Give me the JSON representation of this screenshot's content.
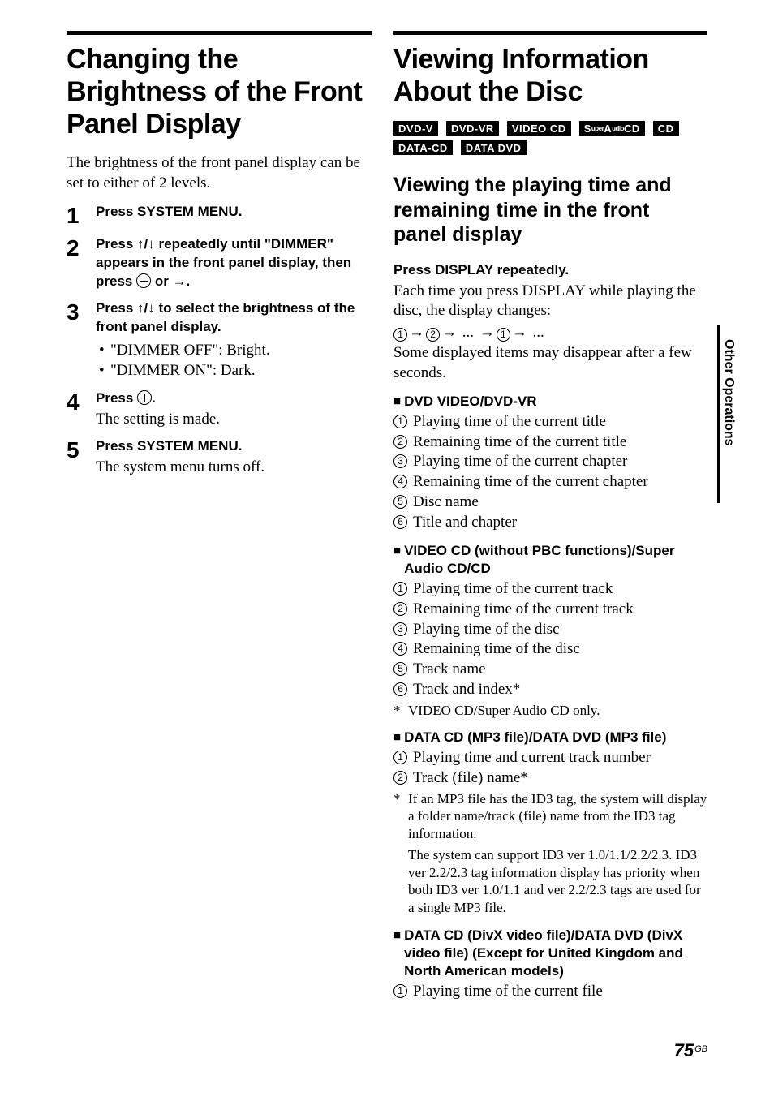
{
  "left": {
    "title": "Changing the Brightness of the Front Panel Display",
    "intro": "The brightness of the front panel display can be set to either of 2 levels.",
    "steps": [
      {
        "num": "1",
        "instr": "Press SYSTEM MENU."
      },
      {
        "num": "2",
        "instr_pre": "Press ",
        "arrows": "↑/↓",
        "instr_mid": " repeatedly until \"DIMMER\" appears in the front panel display, then press ",
        "instr_post_or": " or ",
        "instr_post_arrow": "→",
        "instr_end": "."
      },
      {
        "num": "3",
        "instr_pre": "Press ",
        "arrows": "↑/↓",
        "instr_mid": " to select the brightness of the front panel display.",
        "bullets": [
          "\"DIMMER OFF\": Bright.",
          "\"DIMMER ON\": Dark."
        ]
      },
      {
        "num": "4",
        "instr_pre": "Press ",
        "instr_end": ".",
        "note": "The setting is made."
      },
      {
        "num": "5",
        "instr": "Press SYSTEM MENU.",
        "note": "The system menu turns off."
      }
    ]
  },
  "right": {
    "title": "Viewing Information About the Disc",
    "badges": [
      "DVD-V",
      "DVD-VR",
      "VIDEO CD",
      "SuperAudioCD",
      "CD",
      "DATA-CD",
      "DATA DVD"
    ],
    "h2": "Viewing the playing time and remaining time in the front panel display",
    "press_display": "Press DISPLAY repeatedly.",
    "desc1": "Each time you press DISPLAY while playing the disc, the display changes:",
    "desc2": "Some displayed items may disappear after a few seconds.",
    "sections": [
      {
        "title": "DVD VIDEO/DVD-VR",
        "items": [
          "Playing time of the current title",
          "Remaining time of the current title",
          "Playing time of the current chapter",
          "Remaining time of the current chapter",
          "Disc name",
          "Title and chapter"
        ]
      },
      {
        "title": "VIDEO CD (without PBC functions)/Super Audio CD/CD",
        "items": [
          "Playing time of the current track",
          "Remaining time of the current track",
          "Playing time of the disc",
          "Remaining time of the disc",
          "Track name",
          "Track and index*"
        ],
        "footnote": "VIDEO CD/Super Audio CD only."
      },
      {
        "title": "DATA CD (MP3 file)/DATA DVD (MP3 file)",
        "items": [
          "Playing time and current track number",
          "Track (file) name*"
        ],
        "footnote": "If an MP3 file has the ID3 tag, the system will display a folder name/track (file) name from the ID3 tag information.",
        "footnote2": "The system can support ID3 ver 1.0/1.1/2.2/2.3. ID3 ver 2.2/2.3 tag information display has priority when both ID3 ver 1.0/1.1 and ver 2.2/2.3 tags are used for a single MP3 file."
      },
      {
        "title": "DATA CD (DivX video file)/DATA DVD (DivX video file) (Except for United Kingdom and North American models)",
        "items": [
          "Playing time of the current file"
        ]
      }
    ]
  },
  "sidebar": "Other Operations",
  "page": "75",
  "region": "GB"
}
